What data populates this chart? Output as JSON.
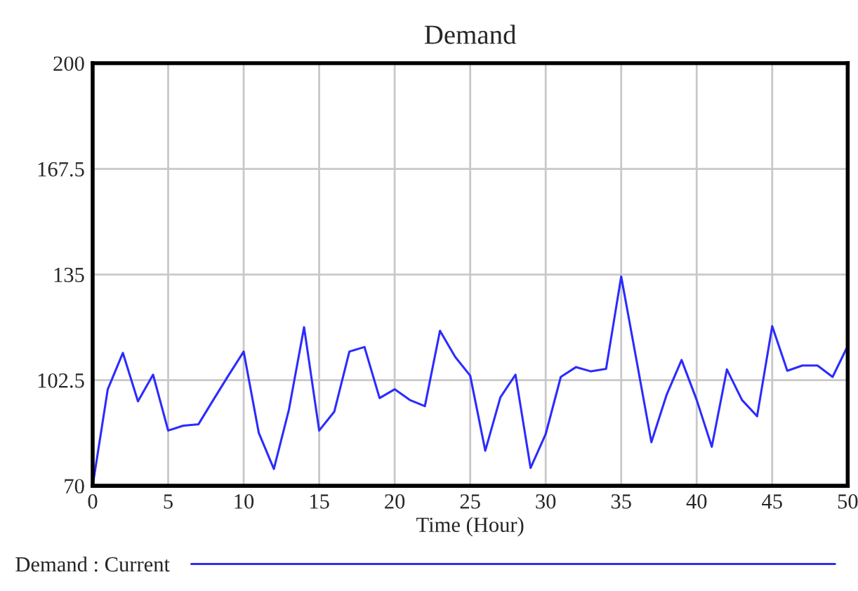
{
  "chart_data": {
    "type": "line",
    "title": "Demand",
    "xlabel": "Time (Hour)",
    "x": [
      0,
      1,
      2,
      3,
      4,
      5,
      6,
      7,
      8,
      9,
      10,
      11,
      12,
      13,
      14,
      15,
      16,
      17,
      18,
      19,
      20,
      21,
      22,
      23,
      24,
      25,
      26,
      27,
      28,
      29,
      30,
      31,
      32,
      33,
      34,
      35,
      36,
      37,
      38,
      39,
      40,
      41,
      42,
      43,
      44,
      45,
      46,
      47,
      48,
      49,
      50
    ],
    "series": [
      {
        "name": "Demand : Current",
        "color": "#2b2bff",
        "values": [
          70,
          99.7,
          110.9,
          96,
          104.2,
          87,
          88.5,
          88.9,
          96.5,
          104,
          111.3,
          86.3,
          75.2,
          93.5,
          118.8,
          87,
          92.8,
          111.3,
          112.7,
          97,
          99.7,
          96.4,
          94.5,
          117.7,
          109.7,
          103.9,
          80.8,
          97.2,
          104.2,
          75.5,
          85.9,
          103.5,
          106.5,
          105.2,
          106,
          134.4,
          109,
          83.4,
          97.9,
          108.7,
          96.4,
          82,
          105.8,
          96.4,
          91.4,
          119.1,
          105.4,
          107,
          107,
          103.5,
          113
        ]
      }
    ],
    "xlim": [
      0,
      50
    ],
    "xticks": [
      0,
      5,
      10,
      15,
      20,
      25,
      30,
      35,
      40,
      45,
      50
    ],
    "ylim": [
      70,
      200
    ],
    "yticks": [
      70,
      102.5,
      135,
      167.5,
      200
    ],
    "grid": true,
    "legend": "bottom left",
    "marker": "none",
    "line_style": "solid"
  }
}
